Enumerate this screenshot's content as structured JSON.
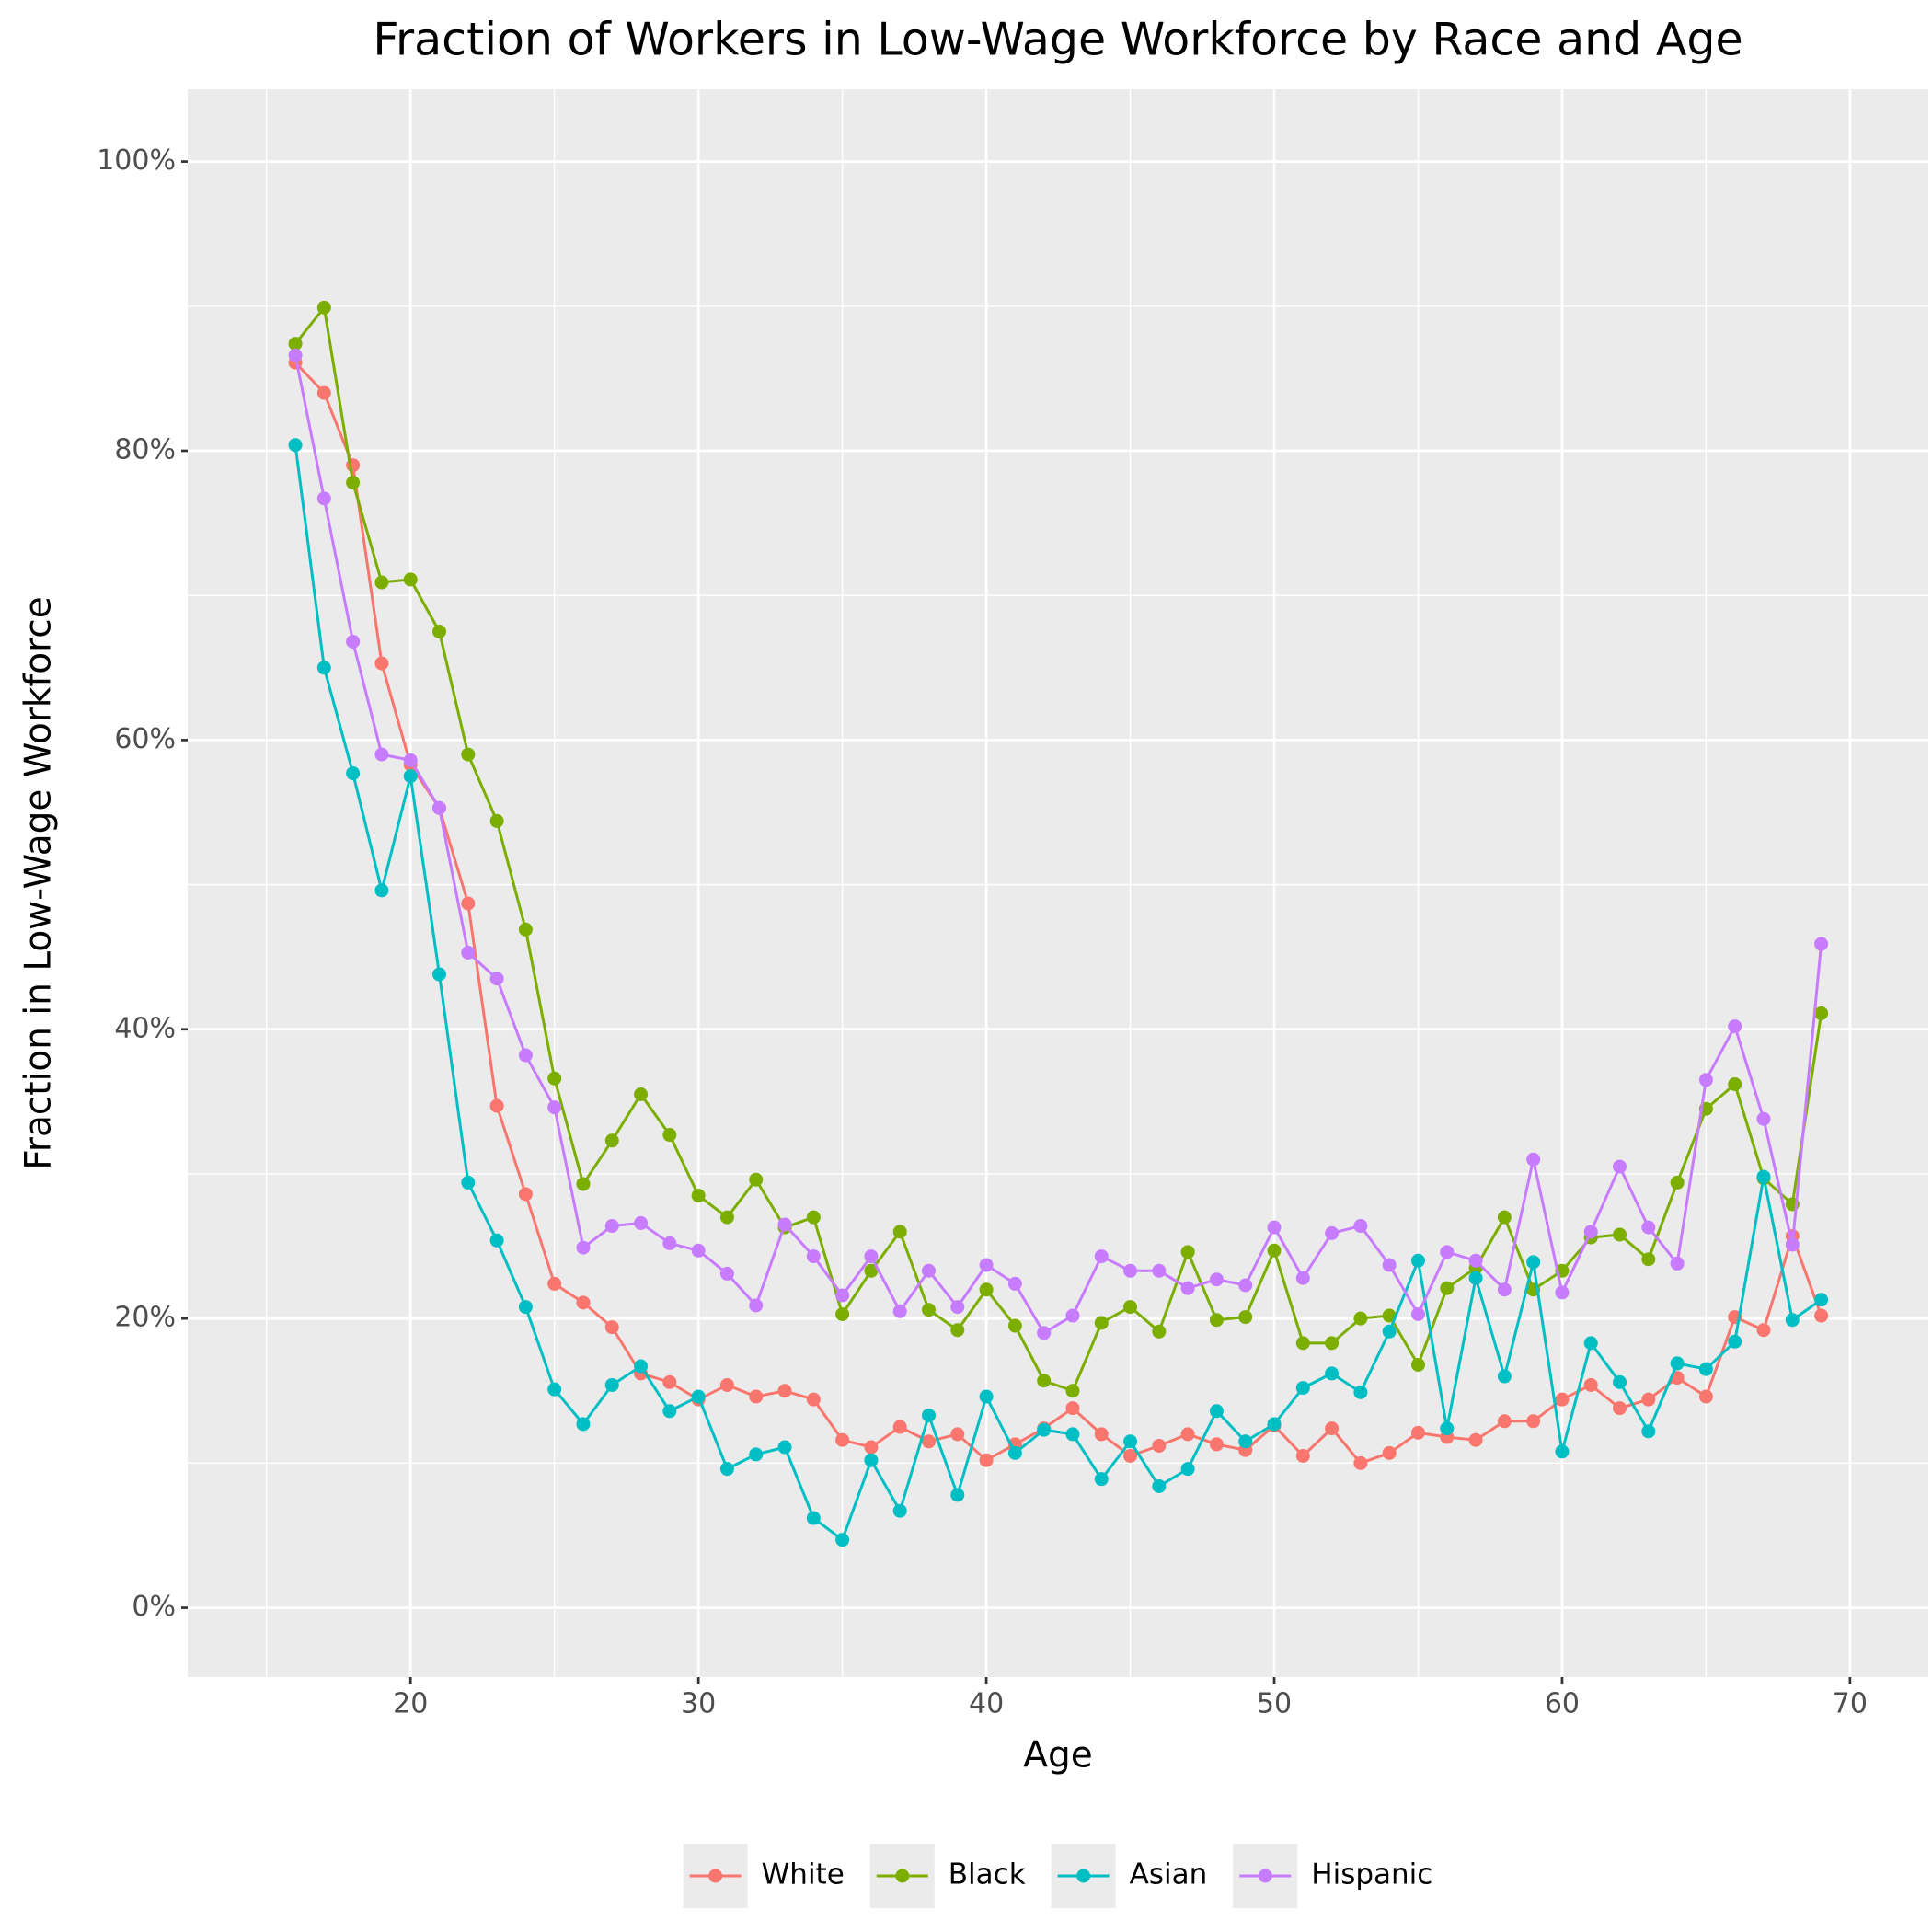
{
  "chart_data": {
    "type": "line",
    "title": "Fraction of Workers in Low-Wage Workforce by Race and Age",
    "xlabel": "Age",
    "ylabel": "Fraction in Low-Wage Workforce",
    "x": [
      16,
      17,
      18,
      19,
      20,
      21,
      22,
      23,
      24,
      25,
      26,
      27,
      28,
      29,
      30,
      31,
      32,
      33,
      34,
      35,
      36,
      37,
      38,
      39,
      40,
      41,
      42,
      43,
      44,
      45,
      46,
      47,
      48,
      49,
      50,
      51,
      52,
      53,
      54,
      55,
      56,
      57,
      58,
      59,
      60,
      61,
      62,
      63,
      64,
      65,
      66,
      67,
      68,
      69
    ],
    "series": [
      {
        "name": "White",
        "color": "#F8766D",
        "values": [
          86.1,
          84.0,
          79.0,
          65.3,
          58.3,
          55.3,
          48.7,
          34.7,
          28.6,
          22.4,
          21.1,
          19.4,
          16.2,
          15.6,
          14.4,
          15.4,
          14.6,
          15.0,
          14.4,
          11.6,
          11.1,
          12.5,
          11.5,
          12.0,
          10.2,
          11.3,
          12.4,
          13.8,
          12.0,
          10.5,
          11.2,
          12.0,
          11.3,
          10.9,
          12.6,
          10.5,
          12.4,
          10.0,
          10.7,
          12.1,
          11.8,
          11.6,
          12.9,
          12.9,
          14.4,
          15.4,
          13.8,
          14.4,
          15.9,
          14.6,
          20.1,
          19.2,
          25.7,
          20.2
        ]
      },
      {
        "name": "Black",
        "color": "#7CAE00",
        "values": [
          87.4,
          89.9,
          77.8,
          70.9,
          71.1,
          67.5,
          59.0,
          54.4,
          46.9,
          36.6,
          29.3,
          32.3,
          35.5,
          32.7,
          28.5,
          27.0,
          29.6,
          26.3,
          27.0,
          20.3,
          23.3,
          26.0,
          20.6,
          19.2,
          22.0,
          19.5,
          15.7,
          15.0,
          19.7,
          20.8,
          19.1,
          24.6,
          19.9,
          20.1,
          24.7,
          18.3,
          18.3,
          20.0,
          20.2,
          16.8,
          22.1,
          23.5,
          27.0,
          22.0,
          23.3,
          25.6,
          25.8,
          24.1,
          29.4,
          34.5,
          36.2,
          29.7,
          27.9,
          41.1
        ]
      },
      {
        "name": "Asian",
        "color": "#00BFC4",
        "values": [
          80.4,
          65.0,
          57.7,
          49.6,
          57.5,
          43.8,
          29.4,
          25.4,
          20.8,
          15.1,
          12.7,
          15.4,
          16.7,
          13.6,
          14.6,
          9.6,
          10.6,
          11.1,
          6.2,
          4.7,
          10.2,
          6.7,
          13.3,
          7.8,
          14.6,
          10.7,
          12.3,
          12.0,
          8.9,
          11.5,
          8.4,
          9.6,
          13.6,
          11.5,
          12.7,
          15.2,
          16.2,
          14.9,
          19.1,
          24.0,
          12.4,
          22.8,
          16.0,
          23.9,
          10.8,
          18.3,
          15.6,
          12.2,
          16.9,
          16.5,
          18.4,
          29.8,
          19.9,
          21.3
        ]
      },
      {
        "name": "Hispanic",
        "color": "#C77CFF",
        "values": [
          86.6,
          76.7,
          66.8,
          59.0,
          58.6,
          55.3,
          45.3,
          43.5,
          38.2,
          34.6,
          24.9,
          26.4,
          26.6,
          25.2,
          24.7,
          23.1,
          20.9,
          26.5,
          24.3,
          21.6,
          24.3,
          20.5,
          23.3,
          20.8,
          23.7,
          22.4,
          19.0,
          20.2,
          24.3,
          23.3,
          23.3,
          22.1,
          22.7,
          22.3,
          26.3,
          22.8,
          25.9,
          26.4,
          23.7,
          20.3,
          24.6,
          24.0,
          22.0,
          31.0,
          21.8,
          26.0,
          30.5,
          26.3,
          23.8,
          36.5,
          40.2,
          33.8,
          25.1,
          45.9
        ]
      }
    ],
    "xlim": [
      12.26,
      72.72
    ],
    "xticks": [
      20,
      30,
      40,
      50,
      60,
      70
    ],
    "ylim": [
      -4.8,
      105.0
    ],
    "yticks": [
      {
        "value": 0,
        "label": "0%"
      },
      {
        "value": 20,
        "label": "20%"
      },
      {
        "value": 40,
        "label": "40%"
      },
      {
        "value": 60,
        "label": "60%"
      },
      {
        "value": 80,
        "label": "80%"
      },
      {
        "value": 100,
        "label": "100%"
      }
    ],
    "grid": true,
    "legend": "bottom"
  }
}
